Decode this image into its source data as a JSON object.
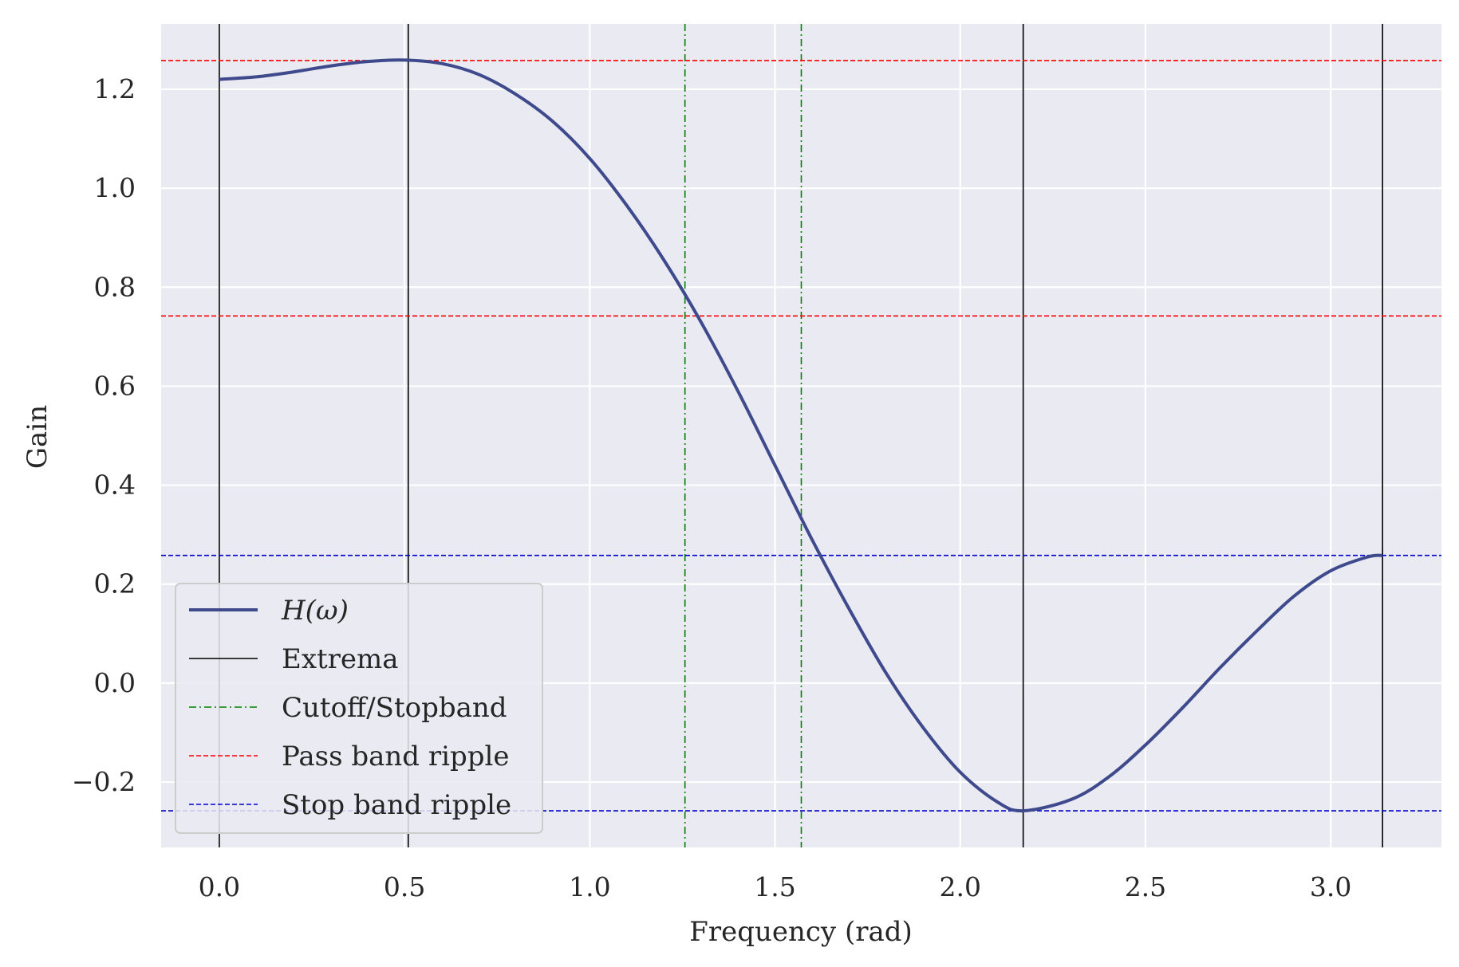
{
  "chart_data": {
    "type": "line",
    "xlabel": "Frequency (rad)",
    "ylabel": "Gain",
    "xlim": [
      -0.157,
      3.299
    ],
    "ylim": [
      -0.332,
      1.332
    ],
    "xticks": [
      0.0,
      0.5,
      1.0,
      1.5,
      2.0,
      2.5,
      3.0
    ],
    "xtick_labels": [
      "0.0",
      "0.5",
      "1.0",
      "1.5",
      "2.0",
      "2.5",
      "3.0"
    ],
    "yticks": [
      -0.2,
      0.0,
      0.2,
      0.4,
      0.6,
      0.8,
      1.0,
      1.2
    ],
    "ytick_labels": [
      "−0.2",
      "0.0",
      "0.2",
      "0.4",
      "0.6",
      "0.8",
      "1.0",
      "1.2"
    ],
    "grid": true,
    "legend_position": "lower-left",
    "background": "#eaeaf2",
    "series": [
      {
        "name": "H(ω)",
        "color": "#3f4a8c",
        "x": [
          0.0,
          0.1,
          0.2,
          0.3,
          0.4,
          0.5,
          0.6,
          0.7,
          0.8,
          0.9,
          1.0,
          1.1,
          1.2,
          1.3,
          1.4,
          1.5,
          1.6,
          1.7,
          1.8,
          1.9,
          2.0,
          2.1,
          2.17,
          2.3,
          2.4,
          2.5,
          2.6,
          2.7,
          2.8,
          2.9,
          3.0,
          3.1,
          3.14
        ],
        "y": [
          1.22,
          1.225,
          1.235,
          1.247,
          1.256,
          1.259,
          1.252,
          1.23,
          1.19,
          1.135,
          1.06,
          0.965,
          0.855,
          0.73,
          0.59,
          0.44,
          0.29,
          0.15,
          0.02,
          -0.09,
          -0.18,
          -0.24,
          -0.258,
          -0.235,
          -0.19,
          -0.125,
          -0.05,
          0.03,
          0.105,
          0.175,
          0.227,
          0.255,
          0.258
        ]
      }
    ],
    "reference_lines": {
      "extrema_x": [
        0.0,
        0.51,
        2.17,
        3.14
      ],
      "cutoff_stopband_x": [
        1.257,
        1.571
      ],
      "passband_ripple_y": [
        1.258,
        0.742
      ],
      "stopband_ripple_y": [
        0.258,
        -0.258
      ]
    },
    "legend": [
      {
        "label": "H(ω)",
        "style": "solid-thick",
        "color": "#3f4a8c"
      },
      {
        "label": "Extrema",
        "style": "solid-thin",
        "color": "#000000"
      },
      {
        "label": "Cutoff/Stopband",
        "style": "dashdot",
        "color": "#007f00"
      },
      {
        "label": "Pass band ripple",
        "style": "dashed",
        "color": "#ff0000"
      },
      {
        "label": "Stop band ripple",
        "style": "dashed",
        "color": "#0000cc"
      }
    ]
  }
}
